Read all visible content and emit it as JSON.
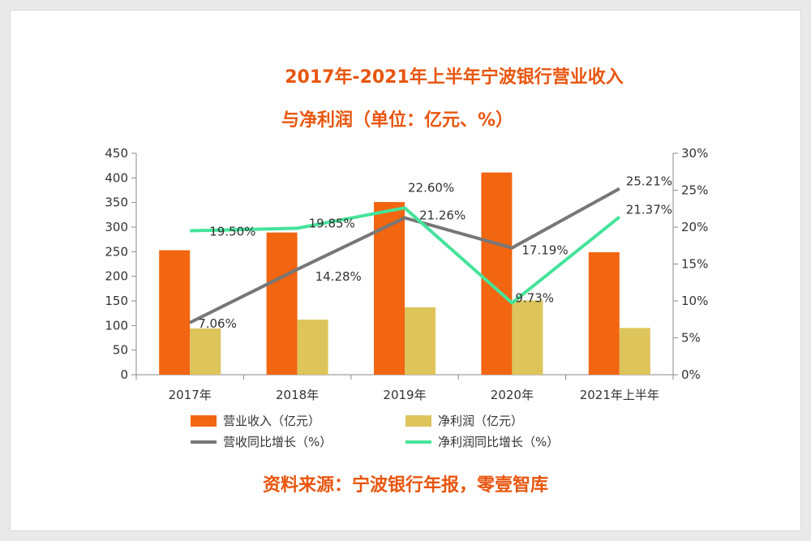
{
  "colors": {
    "title": "#e8560f",
    "revenue": "#f26511",
    "profit": "#ddc45b",
    "revenue_growth": "#777777",
    "profit_growth": "#45e39a",
    "axis": "#8a8a8a",
    "text": "#333333"
  },
  "chart_data": {
    "type": "bar",
    "title_line1": "2017年-2021年上半年宁波银行营业收入",
    "title_line2": "与净利润（单位：亿元、%）",
    "source": "资料来源：宁波银行年报，零壹智库",
    "categories": [
      "2017年",
      "2018年",
      "2019年",
      "2020年",
      "2021年上半年"
    ],
    "y_left": {
      "min": 0,
      "max": 450,
      "step": 50,
      "ticks": [
        "0",
        "50",
        "100",
        "150",
        "200",
        "250",
        "300",
        "350",
        "400",
        "450"
      ]
    },
    "y_right": {
      "min": 0,
      "max": 30,
      "step": 5,
      "ticks": [
        "0%",
        "5%",
        "10%",
        "15%",
        "20%",
        "25%",
        "30%"
      ]
    },
    "series": [
      {
        "name": "营业收入（亿元）",
        "kind": "bar",
        "axis": "left",
        "values": [
          253,
          289,
          351,
          411,
          249
        ]
      },
      {
        "name": "净利润（亿元）",
        "kind": "bar",
        "axis": "left",
        "values": [
          94,
          112,
          137,
          151,
          95
        ]
      },
      {
        "name": "营收同比增长（%）",
        "kind": "line",
        "axis": "right",
        "values": [
          7.06,
          14.28,
          21.26,
          17.19,
          25.21
        ],
        "labels": [
          "7.06%",
          "14.28%",
          "21.26%",
          "17.19%",
          "25.21%"
        ]
      },
      {
        "name": "净利润同比增长（%）",
        "kind": "line",
        "axis": "right",
        "values": [
          19.5,
          19.85,
          22.6,
          9.73,
          21.37
        ],
        "labels": [
          "19.50%",
          "19.85%",
          "22.60%",
          "9.73%",
          "21.37%"
        ]
      }
    ],
    "legend_position": "bottom",
    "grid": false
  }
}
